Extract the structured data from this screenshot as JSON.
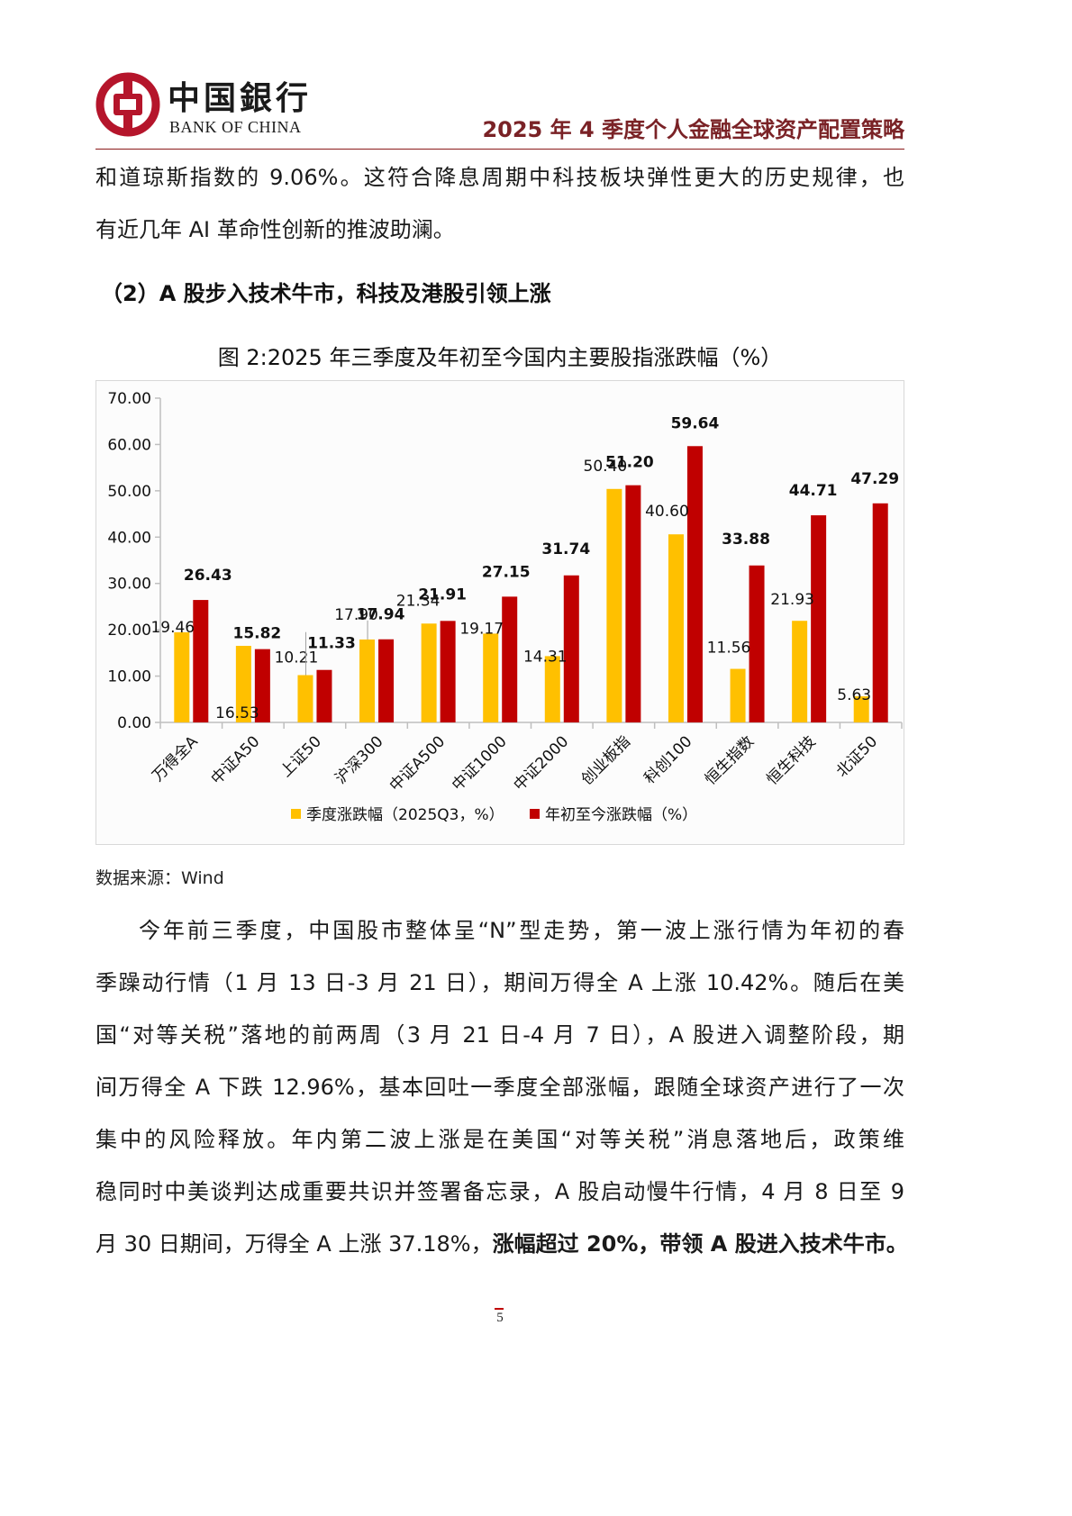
{
  "header": {
    "logo_cn": "中国銀行",
    "logo_en": "BANK OF CHINA",
    "logo_color": "#b5152b",
    "title": "2025 年 4 季度个人金融全球资产配置策略",
    "title_color": "#7a2226"
  },
  "intro": {
    "line1": "和道琼斯指数的 9.06%。这符合降息周期中科技板块弹性更大的历史规律，也",
    "line2": "有近几年 AI 革命性创新的推波助澜。"
  },
  "section": {
    "heading": "（2）A 股步入技术牛市，科技及港股引领上涨"
  },
  "figure": {
    "title": "图 2:2025 年三季度及年初至今国内主要股指涨跌幅（%）",
    "source": "数据来源：Wind"
  },
  "chart_data": {
    "type": "bar",
    "title": "图 2:2025 年三季度及年初至今国内主要股指涨跌幅（%）",
    "xlabel": "",
    "ylabel": "",
    "ylim": [
      0,
      70
    ],
    "yticks": [
      "0.00",
      "10.00",
      "20.00",
      "30.00",
      "40.00",
      "50.00",
      "60.00",
      "70.00"
    ],
    "grid": false,
    "legend_position": "bottom",
    "categories": [
      "万得全A",
      "中证A50",
      "上证50",
      "沪深300",
      "中证A500",
      "中证1000",
      "中证2000",
      "创业板指",
      "科创100",
      "恒生指数",
      "恒生科技",
      "北证50"
    ],
    "series": [
      {
        "name": "季度涨跌幅（2025Q3，%）",
        "color": "#ffc000",
        "values": [
          19.46,
          16.53,
          10.21,
          17.9,
          21.34,
          19.17,
          14.31,
          50.4,
          40.6,
          11.56,
          21.93,
          5.63
        ]
      },
      {
        "name": "年初至今涨跌幅（%）",
        "color": "#c00000",
        "values": [
          26.43,
          15.82,
          11.33,
          17.94,
          21.91,
          27.15,
          31.74,
          51.2,
          59.64,
          33.88,
          44.71,
          47.29
        ]
      }
    ]
  },
  "body": {
    "lines": [
      "今年前三季度，中国股市整体呈“N”型走势，第一波上涨行情为年初的春",
      "季躁动行情（1 月 13 日-3 月 21 日），期间万得全 A 上涨 10.42%。随后在美",
      "国“对等关税”落地的前两周（3 月 21 日-4 月 7 日），A 股进入调整阶段，期",
      "间万得全 A 下跌 12.96%，基本回吐一季度全部涨幅，跟随全球资产进行了一次",
      "集中的风险释放。年内第二波上涨是在美国“对等关税”消息落地后，政策维",
      "稳同时中美谈判达成重要共识并签署备忘录，A 股启动慢牛行情，4 月 8 日至 9"
    ],
    "last_line_normal": "月 30 日期间，万得全 A 上涨 37.18%，",
    "last_line_bold": "涨幅超过 20%，带领 A 股进入技术牛市。"
  },
  "footer": {
    "page_number": "5"
  }
}
